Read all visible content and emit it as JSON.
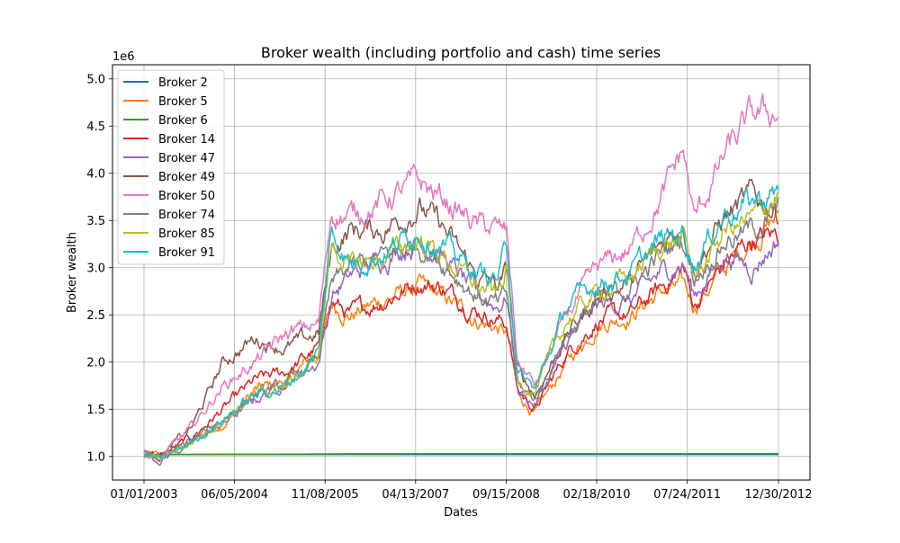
{
  "chart_data": {
    "type": "line",
    "title": "Broker wealth (including portfolio and cash) time series",
    "xlabel": "Dates",
    "ylabel": "Broker wealth",
    "y_multiplier_label": "1e6",
    "x_range": [
      "01/01/2003",
      "12/30/2012"
    ],
    "ylim": [
      750000,
      5150000
    ],
    "x_ticks": [
      "01/01/2003",
      "06/05/2004",
      "11/08/2005",
      "04/13/2007",
      "09/15/2008",
      "02/18/2010",
      "07/24/2011",
      "12/30/2012"
    ],
    "y_ticks": [
      1000000,
      1500000,
      2000000,
      2500000,
      3000000,
      3500000,
      4000000,
      4500000,
      5000000
    ],
    "y_tick_labels": [
      "1.0",
      "1.5",
      "2.0",
      "2.5",
      "3.0",
      "3.5",
      "4.0",
      "4.5",
      "5.0"
    ],
    "grid": true,
    "legend_position": "top-left",
    "anchor_dates": [
      "01/01/2003",
      "04/01/2003",
      "10/01/2003",
      "04/01/2004",
      "10/01/2004",
      "04/01/2005",
      "10/01/2005",
      "12/15/2005",
      "04/01/2006",
      "10/01/2006",
      "05/01/2007",
      "09/01/2007",
      "04/01/2008",
      "08/01/2008",
      "09/20/2008",
      "11/20/2008",
      "03/01/2009",
      "09/01/2009",
      "03/01/2010",
      "09/01/2010",
      "03/01/2011",
      "07/01/2011",
      "09/01/2011",
      "03/01/2012",
      "08/01/2012",
      "12/30/2012"
    ],
    "series": [
      {
        "name": "Broker 2",
        "color": "#1f77b4",
        "values": [
          1020000,
          1020000,
          1020000,
          1020000,
          1020000,
          1020000,
          1020000,
          1020000,
          1020000,
          1020000,
          1020000,
          1020000,
          1020000,
          1020000,
          1020000,
          1020000,
          1020000,
          1020000,
          1020000,
          1020000,
          1020000,
          1020000,
          1020000,
          1020000,
          1020000,
          1020000
        ]
      },
      {
        "name": "Broker 5",
        "color": "#ff7f0e",
        "values": [
          1030000,
          1000000,
          1150000,
          1350000,
          1700000,
          1800000,
          2100000,
          2600000,
          2500000,
          2650000,
          2800000,
          2700000,
          2450000,
          2350000,
          2300000,
          1650000,
          1450000,
          2000000,
          2400000,
          2500000,
          2750000,
          2800000,
          2600000,
          3000000,
          3300000,
          3550000
        ]
      },
      {
        "name": "Broker 6",
        "color": "#2ca02c",
        "values": [
          1020000,
          1020000,
          1022000,
          1023000,
          1024000,
          1025000,
          1026000,
          1027000,
          1028000,
          1029000,
          1030000,
          1030000,
          1030000,
          1030000,
          1030000,
          1030000,
          1030000,
          1030000,
          1030000,
          1030000,
          1030000,
          1030000,
          1030000,
          1030000,
          1030000,
          1030000
        ]
      },
      {
        "name": "Broker 14",
        "color": "#d62728",
        "values": [
          1040000,
          1000000,
          1200000,
          1500000,
          1800000,
          1900000,
          2150000,
          2650000,
          2500000,
          2650000,
          2850000,
          2800000,
          2550000,
          2450000,
          2400000,
          1700000,
          1500000,
          2100000,
          2450000,
          2500000,
          2800000,
          3000000,
          2600000,
          3050000,
          3300000,
          3350000
        ]
      },
      {
        "name": "Broker 47",
        "color": "#9467bd",
        "values": [
          1000000,
          960000,
          1150000,
          1350000,
          1600000,
          1800000,
          2000000,
          2700000,
          2900000,
          3100000,
          3300000,
          3150000,
          2700000,
          2600000,
          2700000,
          1700000,
          1550000,
          2200000,
          2600000,
          2650000,
          2950000,
          3050000,
          2700000,
          3150000,
          3000000,
          3300000
        ]
      },
      {
        "name": "Broker 49",
        "color": "#8c564b",
        "values": [
          1050000,
          1000000,
          1300000,
          2000000,
          2250000,
          2150000,
          2300000,
          3200000,
          3400000,
          3400000,
          3650000,
          3450000,
          2900000,
          2800000,
          2950000,
          1900000,
          1650000,
          2300000,
          2700000,
          2850000,
          3250000,
          3500000,
          3000000,
          3550000,
          3750000,
          3600000
        ]
      },
      {
        "name": "Broker 50",
        "color": "#e377c2",
        "values": [
          1060000,
          980000,
          1300000,
          1750000,
          2000000,
          2300000,
          2400000,
          3600000,
          3550000,
          3700000,
          3900000,
          3750000,
          3450000,
          3400000,
          3350000,
          2000000,
          1750000,
          2500000,
          3000000,
          3200000,
          3750000,
          4250000,
          3500000,
          4200000,
          4600000,
          4650000
        ]
      },
      {
        "name": "Broker 74",
        "color": "#7f7f7f",
        "values": [
          1020000,
          980000,
          1150000,
          1400000,
          1650000,
          1750000,
          2050000,
          2800000,
          3000000,
          3100000,
          3250000,
          3100000,
          2700000,
          2600000,
          2700000,
          1750000,
          1600000,
          2300000,
          2650000,
          2800000,
          3150000,
          3300000,
          2900000,
          3300000,
          3400000,
          3600000
        ]
      },
      {
        "name": "Broker 85",
        "color": "#bcbd22",
        "values": [
          1030000,
          970000,
          1150000,
          1400000,
          1650000,
          1750000,
          2050000,
          3250000,
          3000000,
          3100000,
          3300000,
          3150000,
          2800000,
          2700000,
          3000000,
          1800000,
          1700000,
          2450000,
          2750000,
          2900000,
          3250000,
          3300000,
          2900000,
          3400000,
          3500000,
          3800000
        ]
      },
      {
        "name": "Broker 91",
        "color": "#17becf",
        "values": [
          1020000,
          960000,
          1150000,
          1400000,
          1650000,
          1750000,
          2100000,
          3400000,
          3050000,
          3150000,
          3400000,
          3250000,
          2950000,
          2900000,
          3250000,
          1900000,
          1700000,
          2600000,
          2850000,
          2950000,
          3300000,
          3400000,
          3050000,
          3600000,
          3700000,
          3800000
        ]
      }
    ]
  }
}
